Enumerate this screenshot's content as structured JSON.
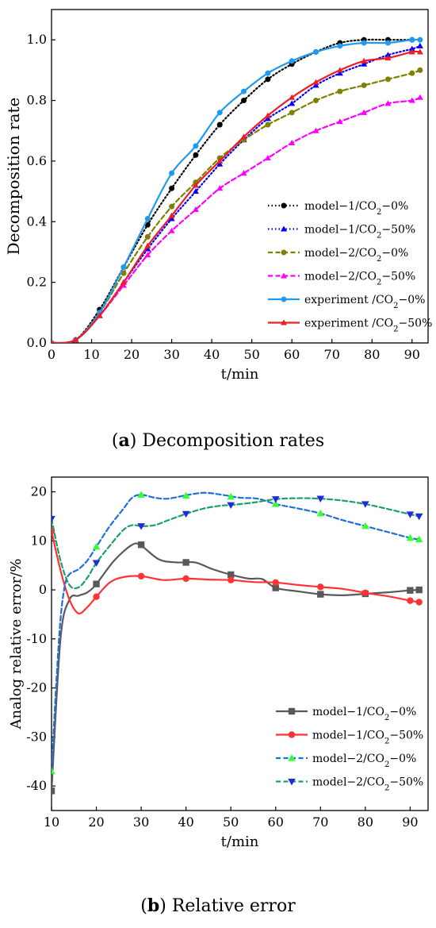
{
  "captions": {
    "a_letter": "a",
    "a_text": "Decomposition rates",
    "b_letter": "b",
    "b_text": "Relative error"
  },
  "chart_data": [
    {
      "type": "line",
      "xlabel": "t/min",
      "ylabel": "Decomposition rate",
      "xlim": [
        0,
        94
      ],
      "ylim": [
        0,
        1.1
      ],
      "xticks": [
        0,
        10,
        20,
        30,
        40,
        50,
        60,
        70,
        80,
        90
      ],
      "yticks": [
        0.0,
        0.2,
        0.4,
        0.6,
        0.8,
        1.0
      ],
      "ytick_labels": [
        "0.0",
        "0.2",
        "0.4",
        "0.6",
        "0.8",
        "1.0"
      ],
      "grid": false,
      "legend_position": "center-right",
      "series": [
        {
          "name": "model−1/CO₂−0%",
          "color": "#000000",
          "dash": "dotted",
          "marker": "circle",
          "x": [
            0,
            6,
            12,
            18,
            24,
            30,
            36,
            42,
            48,
            54,
            60,
            66,
            72,
            78,
            84,
            90
          ],
          "y": [
            0,
            0.01,
            0.11,
            0.25,
            0.39,
            0.51,
            0.62,
            0.72,
            0.8,
            0.87,
            0.92,
            0.96,
            0.99,
            1.0,
            1.0,
            1.0
          ]
        },
        {
          "name": "model−1/CO₂−50%",
          "color": "#0000ff",
          "dash": "dotted",
          "marker": "triangle-up",
          "x": [
            0,
            6,
            12,
            18,
            24,
            30,
            36,
            42,
            48,
            54,
            60,
            66,
            72,
            78,
            84,
            90,
            92
          ],
          "y": [
            0,
            0.01,
            0.09,
            0.2,
            0.31,
            0.41,
            0.5,
            0.59,
            0.67,
            0.74,
            0.79,
            0.85,
            0.89,
            0.92,
            0.95,
            0.97,
            0.98
          ]
        },
        {
          "name": "model−2/CO₂−0%",
          "color": "#808000",
          "dash": "dashed",
          "marker": "circle",
          "x": [
            0,
            6,
            12,
            18,
            24,
            30,
            36,
            42,
            48,
            54,
            60,
            66,
            72,
            78,
            84,
            90,
            92
          ],
          "y": [
            0,
            0.01,
            0.1,
            0.23,
            0.35,
            0.45,
            0.53,
            0.61,
            0.67,
            0.72,
            0.76,
            0.8,
            0.83,
            0.85,
            0.87,
            0.89,
            0.9
          ]
        },
        {
          "name": "model−2/CO₂−50%",
          "color": "#ff00ff",
          "dash": "dashed",
          "marker": "triangle-up",
          "x": [
            0,
            6,
            12,
            18,
            24,
            30,
            36,
            42,
            48,
            54,
            60,
            66,
            72,
            78,
            84,
            90,
            92
          ],
          "y": [
            0,
            0.01,
            0.09,
            0.19,
            0.29,
            0.37,
            0.44,
            0.51,
            0.56,
            0.61,
            0.66,
            0.7,
            0.73,
            0.76,
            0.79,
            0.8,
            0.81
          ]
        },
        {
          "name": "experiment /CO₂−0%",
          "color": "#1e9bf0",
          "dash": "solid",
          "marker": "circle",
          "x": [
            0,
            6,
            12,
            18,
            24,
            30,
            36,
            42,
            48,
            54,
            60,
            66,
            72,
            78,
            84,
            90,
            92
          ],
          "y": [
            0,
            0.01,
            0.1,
            0.25,
            0.41,
            0.56,
            0.65,
            0.76,
            0.83,
            0.89,
            0.93,
            0.96,
            0.98,
            0.99,
            0.99,
            1.0,
            1.0
          ]
        },
        {
          "name": "experiment /CO₂−50%",
          "color": "#ee1c25",
          "dash": "solid",
          "marker": "triangle-up",
          "x": [
            0,
            6,
            12,
            18,
            24,
            30,
            36,
            42,
            48,
            54,
            60,
            66,
            72,
            78,
            84,
            90,
            92
          ],
          "y": [
            0,
            0.01,
            0.09,
            0.2,
            0.32,
            0.42,
            0.52,
            0.6,
            0.68,
            0.75,
            0.81,
            0.86,
            0.9,
            0.93,
            0.94,
            0.96,
            0.96
          ]
        }
      ]
    },
    {
      "type": "line",
      "xlabel": "t/min",
      "ylabel": "Analog relative error/%",
      "xlim": [
        10,
        94
      ],
      "ylim": [
        -45,
        23
      ],
      "xticks": [
        10,
        20,
        30,
        40,
        50,
        60,
        70,
        80,
        90
      ],
      "yticks": [
        -40,
        -30,
        -20,
        -10,
        0,
        10,
        20
      ],
      "ytick_labels": [
        "-40",
        "-30",
        "-20",
        "-10",
        "0",
        "10",
        "20"
      ],
      "grid": false,
      "legend_position": "bottom-right",
      "series": [
        {
          "name": "model−1/CO₂−0%",
          "color": "#595959",
          "dash": "solid",
          "marker": "square",
          "x": [
            10,
            20,
            30,
            40,
            50,
            60,
            70,
            80,
            90,
            92
          ],
          "y": [
            -41,
            1.2,
            9.2,
            5.6,
            3.1,
            0.4,
            -0.9,
            -0.8,
            -0.1,
            0
          ],
          "curve": {
            "x": [
              10,
              12,
              14,
              16,
              18,
              20,
              24,
              28,
              30,
              34,
              38,
              42,
              46,
              50,
              54,
              57,
              60,
              65,
              70,
              75,
              80,
              85,
              90,
              92
            ],
            "y": [
              -41,
              -10,
              -2,
              -1.2,
              -0.5,
              1.2,
              6,
              9.2,
              9,
              6.2,
              5.6,
              5.6,
              4.2,
              3.1,
              2.3,
              2.2,
              0.4,
              -0.3,
              -0.9,
              -1.1,
              -0.8,
              -0.5,
              -0.1,
              0
            ]
          }
        },
        {
          "name": "model−1/CO₂−50%",
          "color": "#ff3333",
          "dash": "solid",
          "marker": "circle",
          "x": [
            10,
            20,
            30,
            40,
            50,
            60,
            70,
            80,
            90,
            92
          ],
          "y": [
            12,
            -1.4,
            2.8,
            2.3,
            2.0,
            1.5,
            0.6,
            -0.6,
            -2.2,
            -2.5
          ],
          "curve": {
            "x": [
              10,
              12,
              14,
              16,
              18,
              20,
              23,
              26,
              30,
              35,
              40,
              45,
              50,
              55,
              60,
              65,
              70,
              75,
              80,
              85,
              90,
              92
            ],
            "y": [
              12,
              4,
              -2,
              -4.8,
              -3.5,
              -1.4,
              1.5,
              2.6,
              2.8,
              2.0,
              2.3,
              2.1,
              2.0,
              1.6,
              1.5,
              1.0,
              0.6,
              0.2,
              -0.6,
              -1.3,
              -2.2,
              -2.5
            ]
          }
        },
        {
          "name": "model−2/CO₂−0%",
          "color": "#1e6fd9",
          "marker_color": "#33ff33",
          "dash": "dashed",
          "marker": "triangle-up",
          "x": [
            10,
            20,
            30,
            40,
            50,
            60,
            70,
            80,
            90,
            92
          ],
          "y": [
            -37,
            8.8,
            19.4,
            19.2,
            19.0,
            17.5,
            15.6,
            13.0,
            10.6,
            10.3
          ],
          "curve": {
            "x": [
              10,
              11,
              12,
              13,
              14,
              16,
              18,
              20,
              23,
              26,
              28,
              30,
              33,
              36,
              40,
              44,
              48,
              52,
              56,
              60,
              65,
              70,
              75,
              80,
              85,
              90,
              92
            ],
            "y": [
              -37,
              -20,
              -6,
              1,
              3.2,
              4.2,
              6,
              8.8,
              13,
              16.5,
              18.8,
              19.4,
              18.8,
              18.6,
              19.3,
              19.8,
              19.4,
              18.8,
              18.6,
              17.5,
              16.6,
              15.6,
              14.2,
              13.0,
              11.8,
              10.6,
              10.3
            ]
          }
        },
        {
          "name": "model−2/CO₂−50%",
          "color": "#1aa06b",
          "marker_color": "#1f2bd9",
          "dash": "dashed",
          "marker": "triangle-down",
          "x": [
            10,
            20,
            30,
            40,
            50,
            60,
            70,
            80,
            90,
            92
          ],
          "y": [
            14.5,
            5.5,
            13.0,
            15.5,
            17.3,
            18.5,
            18.6,
            17.5,
            15.4,
            15.0
          ],
          "curve": {
            "x": [
              10,
              12,
              14,
              16,
              18,
              20,
              23,
              26,
              28,
              30,
              33,
              36,
              40,
              44,
              48,
              50,
              55,
              60,
              65,
              70,
              75,
              80,
              85,
              90,
              92
            ],
            "y": [
              14.5,
              6,
              1,
              0.5,
              2.5,
              5.5,
              9,
              12.2,
              13.2,
              13.0,
              13.2,
              14.2,
              15.5,
              16.6,
              17.2,
              17.3,
              17.8,
              18.5,
              18.7,
              18.6,
              18.2,
              17.5,
              16.5,
              15.4,
              15.0
            ]
          }
        }
      ]
    }
  ]
}
